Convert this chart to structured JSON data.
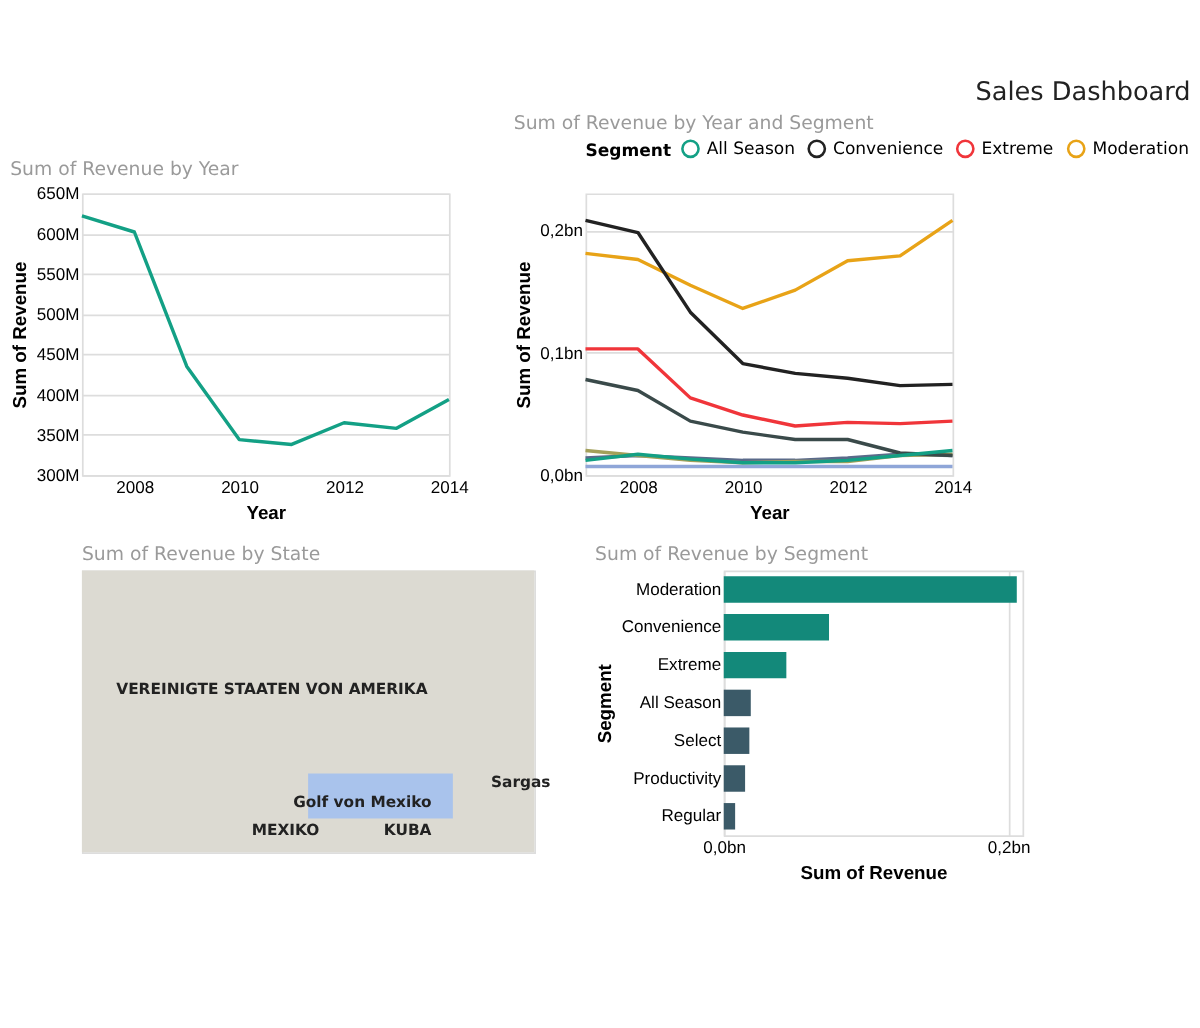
{
  "chart_data": [
    {
      "type": "line",
      "title": "Sum of Revenue by Year",
      "xlabel": "Year",
      "ylabel": "Sum of Revenue",
      "x": [
        2007,
        2008,
        2009,
        2010,
        2011,
        2012,
        2013,
        2014
      ],
      "series": [
        {
          "color": "#13a085",
          "values": [
            622,
            602,
            435,
            344,
            338,
            365,
            358,
            394
          ]
        }
      ],
      "xlim": [
        2007,
        2014
      ],
      "xticks": [
        2008,
        2010,
        2012,
        2014
      ],
      "ylim": [
        300,
        650
      ],
      "yticks": [
        {
          "value": 300,
          "label": "300M"
        },
        {
          "value": 350,
          "label": "350M"
        },
        {
          "value": 400,
          "label": "400M"
        },
        {
          "value": 450,
          "label": "450M"
        },
        {
          "value": 500,
          "label": "500M"
        },
        {
          "value": 550,
          "label": "550M"
        },
        {
          "value": 600,
          "label": "600M"
        },
        {
          "value": 650,
          "label": "650M"
        }
      ],
      "grid": "y",
      "legend": false,
      "marker": "none",
      "line_style": "solid"
    },
    {
      "type": "line",
      "title": "Sum of Revenue by Year and Segment",
      "subtitle": "Sales Dashboard",
      "xlabel": "Year",
      "ylabel": "Sum of Revenue",
      "legend_title": "Segment",
      "x": [
        2007,
        2008,
        2009,
        2010,
        2011,
        2012,
        2013,
        2014
      ],
      "series": [
        {
          "name": "All Season",
          "color": "#13a085",
          "values": [
            0.012,
            0.017,
            0.013,
            0.01,
            0.01,
            0.012,
            0.016,
            0.02
          ]
        },
        {
          "name": "Convenience",
          "color": "#222222",
          "values": [
            0.208,
            0.198,
            0.133,
            0.091,
            0.083,
            0.079,
            0.073,
            0.074
          ]
        },
        {
          "name": "Extreme",
          "color": "#f0353a",
          "values": [
            0.103,
            0.103,
            0.063,
            0.049,
            0.04,
            0.043,
            0.042,
            0.044
          ]
        },
        {
          "name": "Moderation",
          "color": "#e8a317",
          "values": [
            0.181,
            0.176,
            0.155,
            0.136,
            0.151,
            0.175,
            0.179,
            0.208
          ]
        },
        {
          "color": "#3a4a4a",
          "values": [
            0.078,
            0.069,
            0.044,
            0.035,
            0.029,
            0.029,
            0.018,
            0.016
          ]
        },
        {
          "color": "#a3a05a",
          "values": [
            0.02,
            0.016,
            0.012,
            0.01,
            0.011,
            0.011,
            0.016,
            0.017
          ]
        },
        {
          "color": "#5a6a8a",
          "values": [
            0.014,
            0.016,
            0.014,
            0.012,
            0.012,
            0.014,
            0.017,
            0.016
          ]
        },
        {
          "color": "#8fa6d8",
          "values": [
            0.007,
            0.007,
            0.007,
            0.007,
            0.007,
            0.007,
            0.007,
            0.007
          ]
        }
      ],
      "xlim": [
        2007,
        2014
      ],
      "xticks": [
        2008,
        2010,
        2012,
        2014
      ],
      "ylim": [
        0,
        0.23
      ],
      "yticks": [
        {
          "value": 0,
          "label": "0,0bn"
        },
        {
          "value": 0.1,
          "label": "0,1bn"
        },
        {
          "value": 0.2,
          "label": "0,2bn"
        }
      ],
      "grid": "y",
      "legend": "top",
      "marker": "none",
      "line_style": "solid"
    },
    {
      "type": "other",
      "title": "Sum of Revenue by State",
      "annotations": [
        "VEREINIGTE STAATEN VON AMERIKA",
        "Golf von Mexiko",
        "MEXIKO",
        "KUBA",
        "Sargas"
      ]
    },
    {
      "type": "bar",
      "orientation": "horizontal",
      "title": "Sum of Revenue by Segment",
      "xlabel": "Sum of Revenue",
      "ylabel": "Segment",
      "categories": [
        "Moderation",
        "Convenience",
        "Extreme",
        "All Season",
        "Select",
        "Productivity",
        "Regular"
      ],
      "values": [
        0.206,
        0.074,
        0.044,
        0.019,
        0.018,
        0.015,
        0.008
      ],
      "colors": [
        "#13897a",
        "#13897a",
        "#13897a",
        "#3b5a68",
        "#3b5a68",
        "#3b5a68",
        "#3b5a68"
      ],
      "xlim": [
        0,
        0.21
      ],
      "xticks": [
        {
          "value": 0,
          "label": "0,0bn"
        },
        {
          "value": 0.2,
          "label": "0,2bn"
        }
      ],
      "grid": "x"
    }
  ]
}
